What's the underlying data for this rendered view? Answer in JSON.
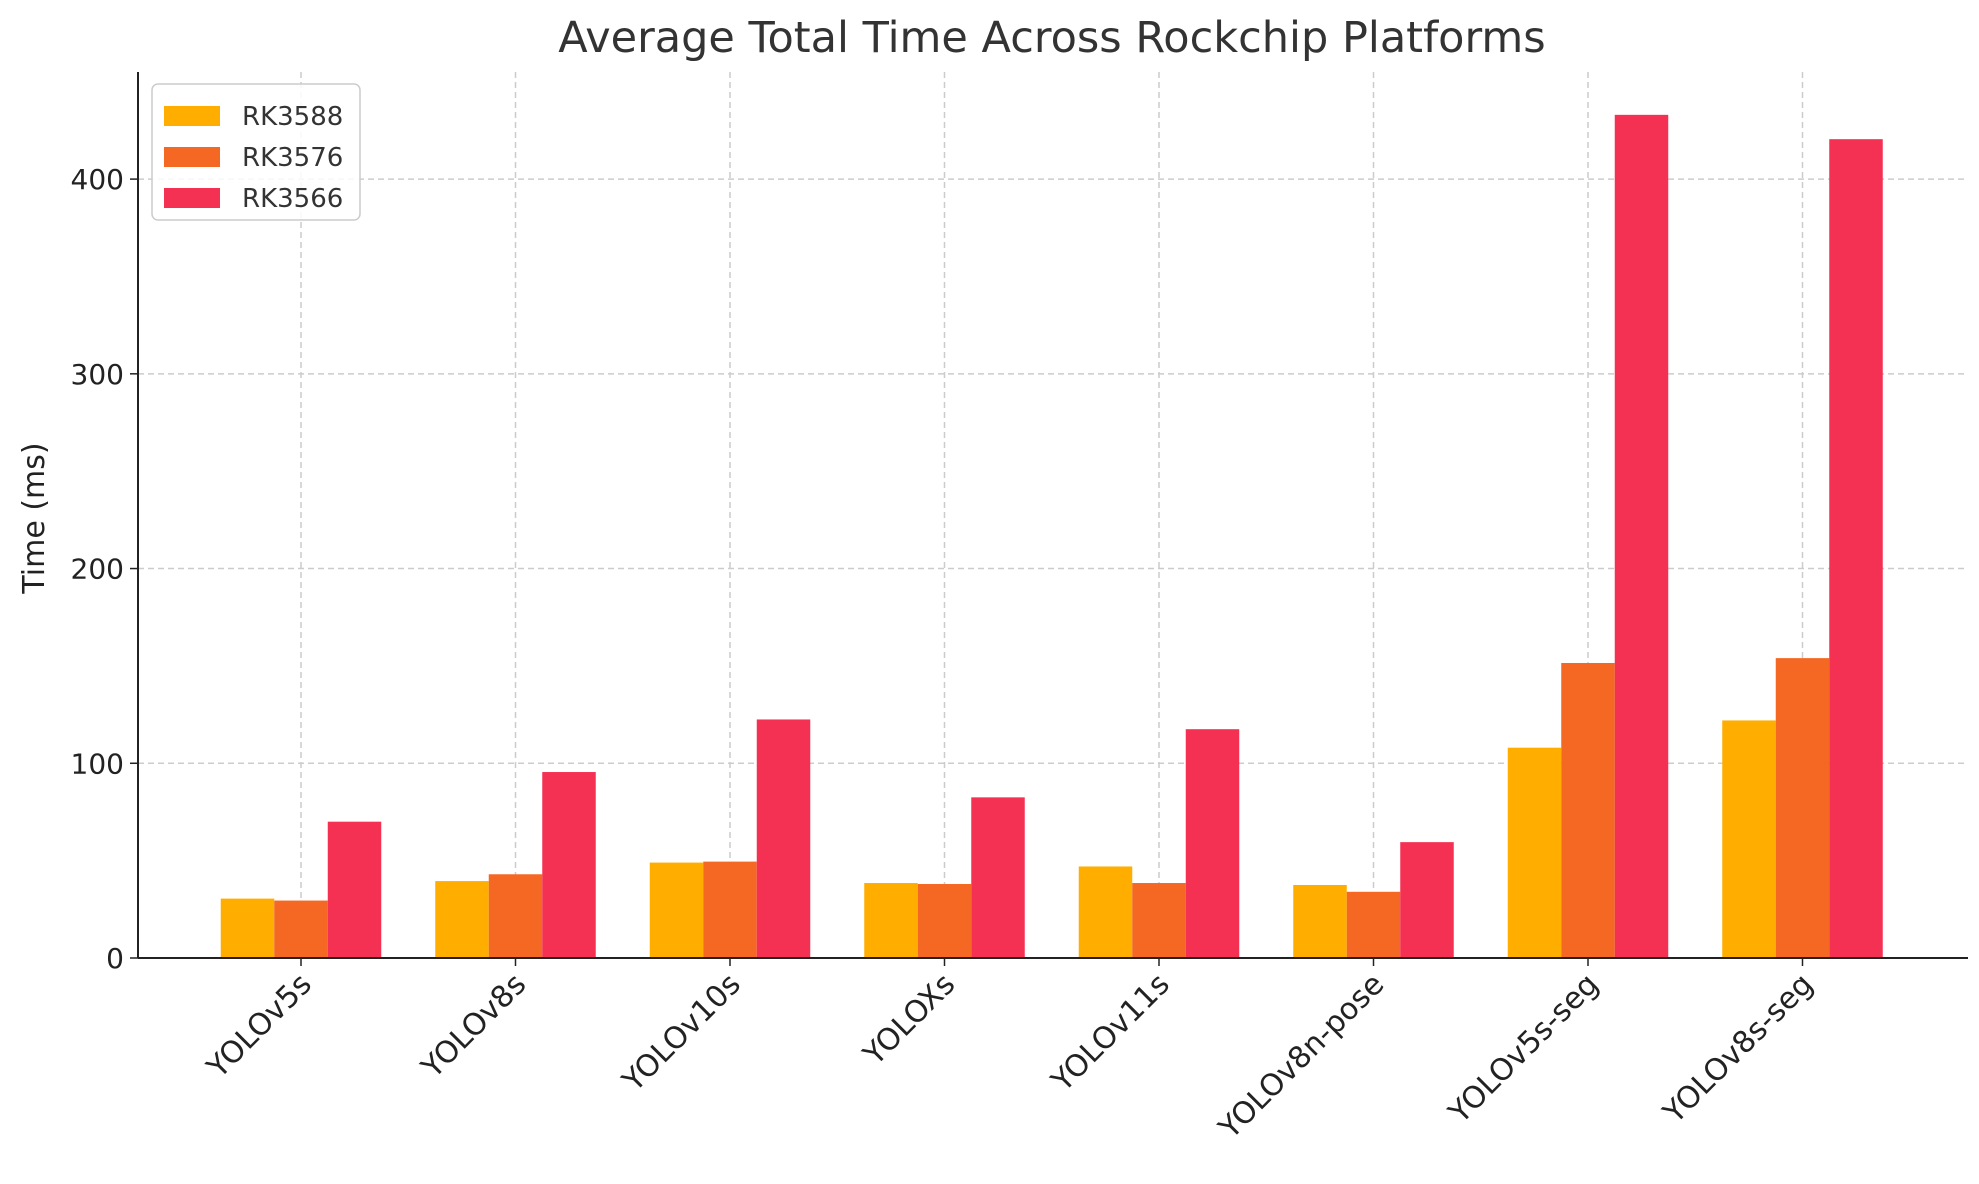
{
  "chart_data": {
    "type": "bar",
    "title": "Average Total Time Across Rockchip Platforms",
    "xlabel": "",
    "ylabel": "Time (ms)",
    "ylim": [
      0,
      455
    ],
    "yticks": [
      0,
      100,
      200,
      300,
      400
    ],
    "grid": true,
    "legend_position": "top-left",
    "categories": [
      "YOLOv5s",
      "YOLOv8s",
      "YOLOv10s",
      "YOLOXs",
      "YOLOv11s",
      "YOLOv8n-pose",
      "YOLOv5s-seg",
      "YOLOv8s-seg"
    ],
    "series": [
      {
        "name": "RK3588",
        "color": "#FFAE00",
        "values": [
          30.5,
          39.5,
          49,
          38.5,
          47,
          37.5,
          108,
          122
        ]
      },
      {
        "name": "RK3576",
        "color": "#F46823",
        "values": [
          29.5,
          43,
          49.5,
          38,
          38.5,
          34,
          151.5,
          154
        ]
      },
      {
        "name": "RK3566",
        "color": "#F53153",
        "values": [
          70,
          95.5,
          122.5,
          82.5,
          117.5,
          59.5,
          433,
          420.5
        ]
      }
    ]
  }
}
